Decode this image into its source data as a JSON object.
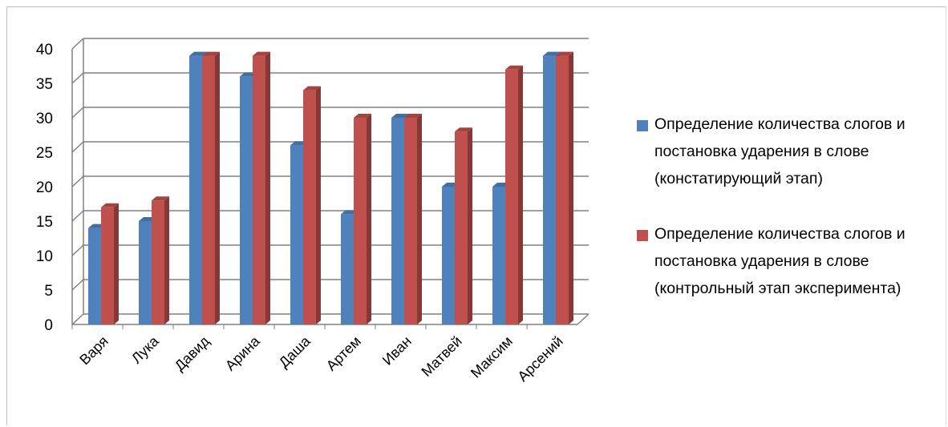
{
  "chart_data": {
    "type": "bar",
    "style": "3d-clustered-column",
    "categories": [
      "Варя",
      "Лука",
      "Давид",
      "Арина",
      "Даша",
      "Артем",
      "Иван",
      "Матвей",
      "Максим",
      "Арсений"
    ],
    "series": [
      {
        "name": "Определение количества слогов и постановка ударения в слове (констатирующий этап)",
        "color": "#4f81bd",
        "values": [
          14,
          15,
          39,
          36,
          26,
          16,
          30,
          20,
          20,
          39
        ]
      },
      {
        "name": "Определение количества слогов и постановка ударения в слове (контрольный этап эксперимента)",
        "color": "#c0504d",
        "values": [
          17,
          18,
          39,
          39,
          34,
          30,
          30,
          28,
          37,
          39
        ]
      }
    ],
    "yticks": [
      "0",
      "5",
      "10",
      "15",
      "20",
      "25",
      "30",
      "35",
      "40"
    ],
    "ylim": [
      0,
      40
    ],
    "grid": true,
    "legend_position": "right"
  }
}
